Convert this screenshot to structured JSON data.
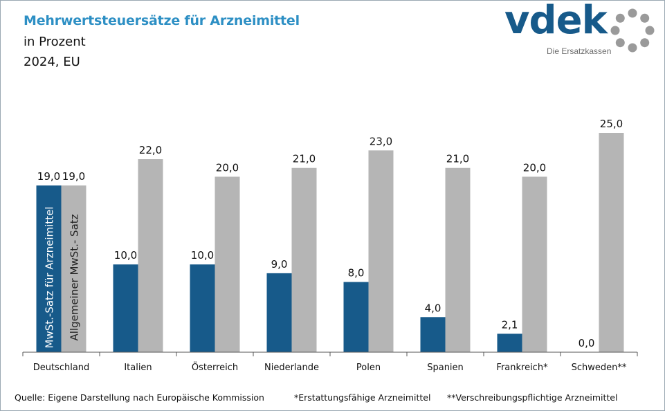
{
  "header": {
    "title": "Mehrwertsteuersätze für Arzneimittel",
    "subtitle": "in Prozent",
    "scope": "2024, EU"
  },
  "logo": {
    "wordmark": "vdek",
    "tagline": "Die Ersatzkassen"
  },
  "chart_data": {
    "type": "bar",
    "categories": [
      "Deutschland",
      "Italien",
      "Österreich",
      "Niederlande",
      "Polen",
      "Spanien",
      "Frankreich*",
      "Schweden**"
    ],
    "series": [
      {
        "name": "MwSt.-Satz für Arzneimittel",
        "color": "#175a8a",
        "values": [
          19.0,
          10.0,
          10.0,
          9.0,
          8.0,
          4.0,
          2.1,
          0.0
        ],
        "labels": [
          "19,0",
          "10,0",
          "10,0",
          "9,0",
          "8,0",
          "4,0",
          "2,1",
          "0,0"
        ]
      },
      {
        "name": "Allgemeiner MwSt.- Satz",
        "color": "#b5b5b5",
        "values": [
          19.0,
          22.0,
          20.0,
          21.0,
          23.0,
          21.0,
          20.0,
          25.0
        ],
        "labels": [
          "19,0",
          "22,0",
          "20,0",
          "21,0",
          "23,0",
          "21,0",
          "20,0",
          "25,0"
        ]
      }
    ],
    "ylim": [
      0,
      25
    ],
    "grid": false,
    "legend": "inside-first-bars"
  },
  "footer": {
    "source": "Quelle: Eigene Darstellung nach Europäische Kommission",
    "note1": "*Erstattungsfähige Arzneimittel",
    "note2": "**Verschreibungspflichtige  Arzneimittel"
  }
}
